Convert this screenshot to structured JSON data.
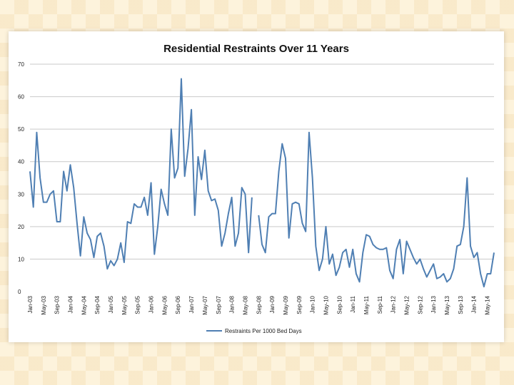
{
  "chart_data": {
    "type": "line",
    "title": "Residential Restraints Over 11 Years",
    "xlabel": "",
    "ylabel": "",
    "ylim": [
      0,
      70
    ],
    "yticks": [
      0,
      10,
      20,
      30,
      40,
      50,
      60,
      70
    ],
    "grid": true,
    "legend_position": "bottom",
    "x_tick_labels": [
      "Jan-03",
      "May-03",
      "Sep-03",
      "Jan-04",
      "May-04",
      "Sep-04",
      "Jan-05",
      "May-05",
      "Sep-05",
      "Jan-06",
      "May-06",
      "Sep-06",
      "Jan-07",
      "May-07",
      "Sep-07",
      "Jan-08",
      "May-08",
      "Sep-08",
      "Jan-09",
      "May-09",
      "Sep-09",
      "Jan-10",
      "May-10",
      "Sep-10",
      "Jan-11",
      "May-11",
      "Sep-11",
      "Jan-12",
      "May-12",
      "Sep-12",
      "Jan-13",
      "May-13",
      "Sep-13",
      "Jan-14",
      "May-14"
    ],
    "series": [
      {
        "name": "Restraints Per 1000 Bed Days",
        "color": "#4f7fb3",
        "start_month": "Jan-03",
        "values": [
          37,
          26,
          49,
          35,
          27.5,
          27.5,
          30,
          31,
          21.5,
          21.5,
          37,
          31,
          39,
          32,
          21,
          11,
          23,
          18,
          16,
          10.5,
          17,
          18,
          14,
          7,
          9.5,
          8,
          10,
          15,
          9,
          21.5,
          21,
          27,
          26,
          26,
          29,
          23.5,
          33.5,
          11.5,
          20,
          31.5,
          27,
          23.5,
          50,
          35,
          38,
          65.5,
          35.5,
          44,
          56,
          23.5,
          41.5,
          34.5,
          43.5,
          31,
          28,
          28.5,
          25,
          14,
          18,
          24,
          29,
          14,
          18,
          32,
          30,
          12,
          29,
          null,
          23.5,
          14.5,
          12,
          23,
          24,
          24,
          37,
          45.5,
          41,
          16.5,
          27,
          27.5,
          27,
          21,
          18.5,
          49,
          35,
          14,
          6.5,
          10,
          20,
          8.5,
          11.5,
          5,
          7.5,
          12,
          13,
          7.5,
          13,
          5.5,
          3,
          12,
          17.5,
          17,
          14.5,
          13.5,
          13,
          13,
          13.5,
          6.5,
          4,
          13,
          16,
          5.5,
          15.5,
          13,
          10.5,
          8.5,
          10,
          7,
          4.5,
          6.5,
          8.5,
          4,
          4.5,
          5.5,
          3,
          4,
          7,
          14,
          14.5,
          20,
          35,
          14,
          10.5,
          12,
          5.5,
          1.5,
          5.5,
          5.5,
          12
        ]
      }
    ]
  }
}
